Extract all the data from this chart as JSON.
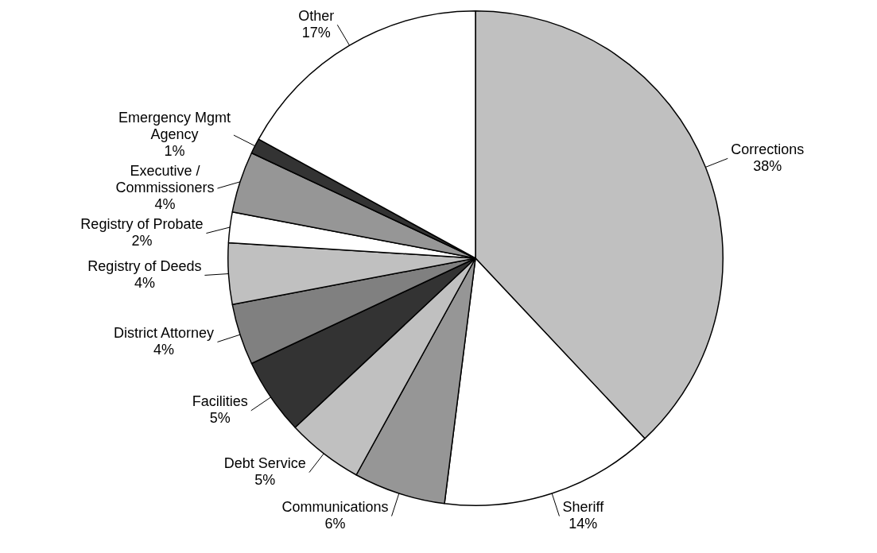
{
  "chart_data": {
    "type": "pie",
    "categories": [
      "Corrections",
      "Sheriff",
      "Communications",
      "Debt Service",
      "Facilities",
      "District Attorney",
      "Registry of Deeds",
      "Registry of Probate",
      "Executive / Commissioners",
      "Emergency Mgmt Agency",
      "Other"
    ],
    "values": [
      38,
      14,
      6,
      5,
      5,
      4,
      4,
      2,
      4,
      1,
      17
    ],
    "colors": [
      "#c0c0c0",
      "#ffffff",
      "#969696",
      "#c0c0c0",
      "#333333",
      "#808080",
      "#c0c0c0",
      "#ffffff",
      "#969696",
      "#333333",
      "#ffffff"
    ],
    "value_labels": [
      "38%",
      "14%",
      "6%",
      "5%",
      "5%",
      "4%",
      "4%",
      "2%",
      "4%",
      "1%",
      "17%"
    ]
  }
}
